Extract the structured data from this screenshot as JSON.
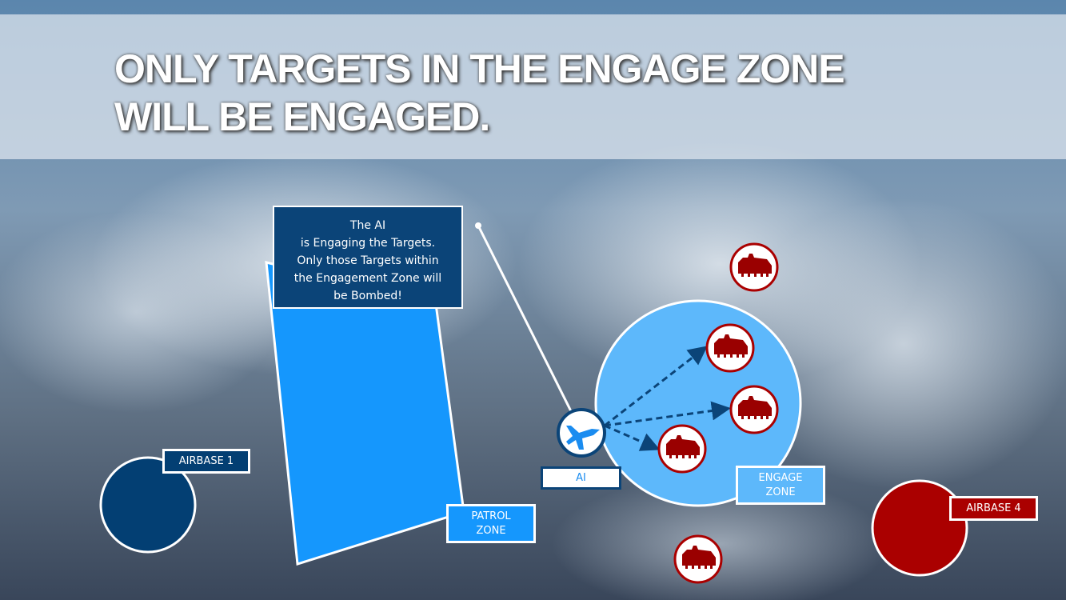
{
  "slide": {
    "title": "ONLY TARGETS IN THE ENGAGE ZONE WILL BE ENGAGED.",
    "callout_lines": [
      "The AI",
      "is Engaging the Targets.",
      "Only those Targets within",
      "the Engagement Zone will",
      "be Bombed!"
    ]
  },
  "labels": {
    "airbase1": "AIRBASE 1",
    "airbase4": "AIRBASE 4",
    "patrol_zone": [
      "PATROL",
      "ZONE"
    ],
    "engage_zone": [
      "ENGAGE",
      "ZONE"
    ],
    "ai": "AI"
  },
  "icons": {
    "aircraft": "jet-fighter-icon",
    "target": "armored-vehicle-icon"
  },
  "colors": {
    "friendly_dark": "#033f73",
    "patrol": "#1597fd",
    "engage": "#5db8fb",
    "enemy": "#aa0000",
    "arrow": "#0b4478"
  }
}
